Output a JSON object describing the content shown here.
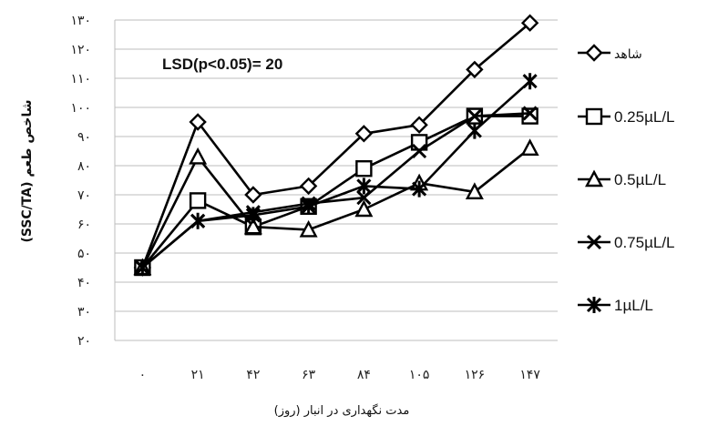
{
  "chart_data": {
    "type": "line",
    "ylabel": "شاخص طعم (SSC/TA)",
    "xlabel": "مدت نگهداری در انبار (روز)",
    "x": [
      "۰",
      "۲۱",
      "۴۲",
      "۶۳",
      "۸۴",
      "۱۰۵",
      "۱۲۶",
      "۱۴۷"
    ],
    "yticks": [
      "۲۰",
      "۳۰",
      "۴۰",
      "۵۰",
      "۶۰",
      "۷۰",
      "۸۰",
      "۹۰",
      "۱۰۰",
      "۱۱۰",
      "۱۲۰",
      "۱۳۰"
    ],
    "ylim": [
      20,
      130
    ],
    "grid": true,
    "annotation": "LSD(p<0.05)= 20",
    "legend_position": "right",
    "series": [
      {
        "name": "شاهد",
        "marker": "diamond",
        "values": [
          45,
          95,
          70,
          73,
          91,
          94,
          113,
          129
        ]
      },
      {
        "name": "0.25µL/L",
        "marker": "square",
        "values": [
          45,
          68,
          59,
          66,
          79,
          88,
          97,
          97
        ]
      },
      {
        "name": "0.5µL/L",
        "marker": "triangle",
        "values": [
          45,
          83,
          59,
          58,
          65,
          74,
          71,
          86
        ]
      },
      {
        "name": "0.75µL/L",
        "marker": "x",
        "values": [
          45,
          61,
          64,
          67,
          69,
          85,
          97,
          98
        ]
      },
      {
        "name": "1µL/L",
        "marker": "star",
        "values": [
          45,
          61,
          63,
          66,
          73,
          72,
          92,
          109
        ]
      }
    ]
  }
}
